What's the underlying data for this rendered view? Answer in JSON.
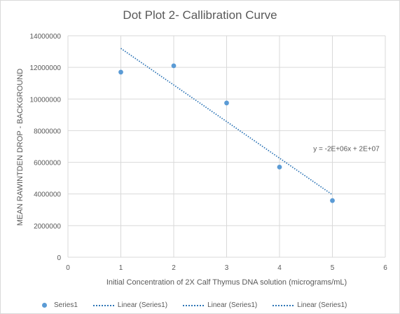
{
  "chart_data": {
    "type": "scatter",
    "title": "Dot Plot 2- Callibration Curve",
    "xlabel": "Initial Concentration of 2X Calf Thymus DNA solution (micrograms/mL)",
    "ylabel": "MEAN RAWINTDEN DROP - BACKGROUND",
    "xlim": [
      0,
      6
    ],
    "ylim": [
      0,
      14000000
    ],
    "x_ticks": [
      "0",
      "1",
      "2",
      "3",
      "4",
      "5",
      "6"
    ],
    "y_ticks": [
      "0",
      "2000000",
      "4000000",
      "6000000",
      "8000000",
      "10000000",
      "12000000",
      "14000000"
    ],
    "grid": true,
    "series": [
      {
        "name": "Series1",
        "x": [
          1,
          2,
          3,
          4,
          5
        ],
        "y": [
          11700000,
          12100000,
          9750000,
          5700000,
          3580000
        ]
      }
    ],
    "trendline": {
      "label": "Linear (Series1)",
      "x_range": [
        1,
        5
      ],
      "y_start": 13200000,
      "y_end": 3950000,
      "equation": "y = -2E+06x + 2E+07"
    },
    "legend": {
      "position": "bottom",
      "entries": [
        "Series1",
        "Linear (Series1)",
        "Linear (Series1)",
        "Linear (Series1)"
      ]
    },
    "colors": {
      "points": "#5b9bd5",
      "trendline": "#2e75b6",
      "grid": "#d9d9d9"
    }
  }
}
